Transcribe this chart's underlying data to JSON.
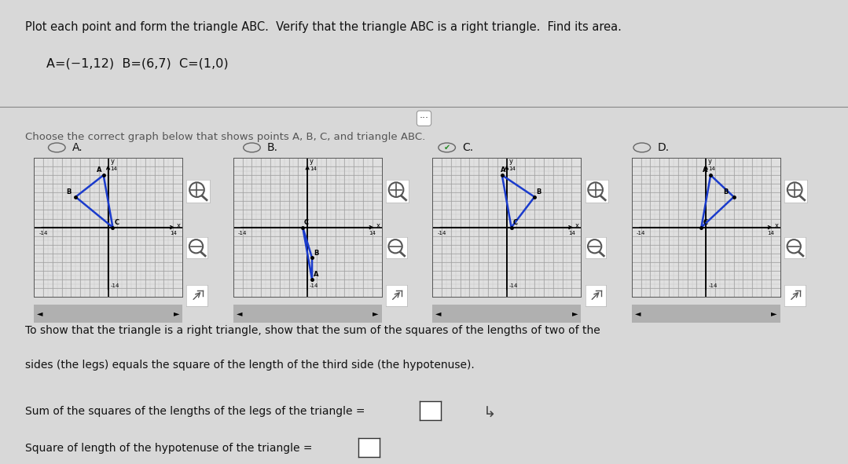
{
  "title_text": "Plot each point and form the triangle ABC.  Verify that the triangle ABC is a right triangle.  Find its area.",
  "subtitle_text": "A=(−1,12)  B=(6,7)  C=(1,0)",
  "instruction_text": "Choose the correct graph below that shows points A, B, C, and triangle ABC.",
  "options": [
    "A.",
    "B.",
    "C.",
    "D."
  ],
  "correct_option_idx": 2,
  "option_A_points": {
    "A": [
      -1,
      12
    ],
    "B": [
      -7,
      7
    ],
    "C": [
      1,
      0
    ]
  },
  "option_B_points": {
    "A": [
      1,
      -12
    ],
    "B": [
      1,
      -7
    ],
    "C": [
      -1,
      0
    ]
  },
  "option_C_points": {
    "A": [
      -1,
      12
    ],
    "B": [
      6,
      7
    ],
    "C": [
      1,
      0
    ]
  },
  "option_D_points": {
    "A": [
      1,
      12
    ],
    "B": [
      6,
      7
    ],
    "C": [
      -1,
      0
    ]
  },
  "label_offsets_A": {
    "A": [
      -1.5,
      0.3
    ],
    "B": [
      -2.0,
      0.3
    ],
    "C": [
      0.3,
      0.3
    ]
  },
  "label_offsets_B": {
    "A": [
      0.3,
      0.3
    ],
    "B": [
      0.3,
      0.3
    ],
    "C": [
      0.3,
      0.3
    ]
  },
  "label_offsets_C": {
    "A": [
      -0.3,
      0.4
    ],
    "B": [
      0.4,
      0.3
    ],
    "C": [
      0.3,
      0.3
    ]
  },
  "label_offsets_D": {
    "A": [
      -1.8,
      0.3
    ],
    "B": [
      -2.2,
      0.3
    ],
    "C": [
      0.3,
      0.3
    ]
  },
  "triangle_color": "#1a3bcc",
  "bg_color": "#d8d8d8",
  "graph_bg": "#e0e0e0",
  "grid_fine_color": "#c0c0c0",
  "grid_coarse_color": "#a0a0a0",
  "bottom_line1": "To show that the triangle is a right triangle, show that the sum of the squares of the lengths of two of the",
  "bottom_line2": "sides (the legs) equals the square of the length of the third side (the hypotenuse).",
  "bottom_line3": "Sum of the squares of the lengths of the legs of the triangle =",
  "bottom_line4": "Square of length of the hypotenuse of the triangle =",
  "figsize": [
    10.79,
    5.91
  ],
  "dpi": 100
}
